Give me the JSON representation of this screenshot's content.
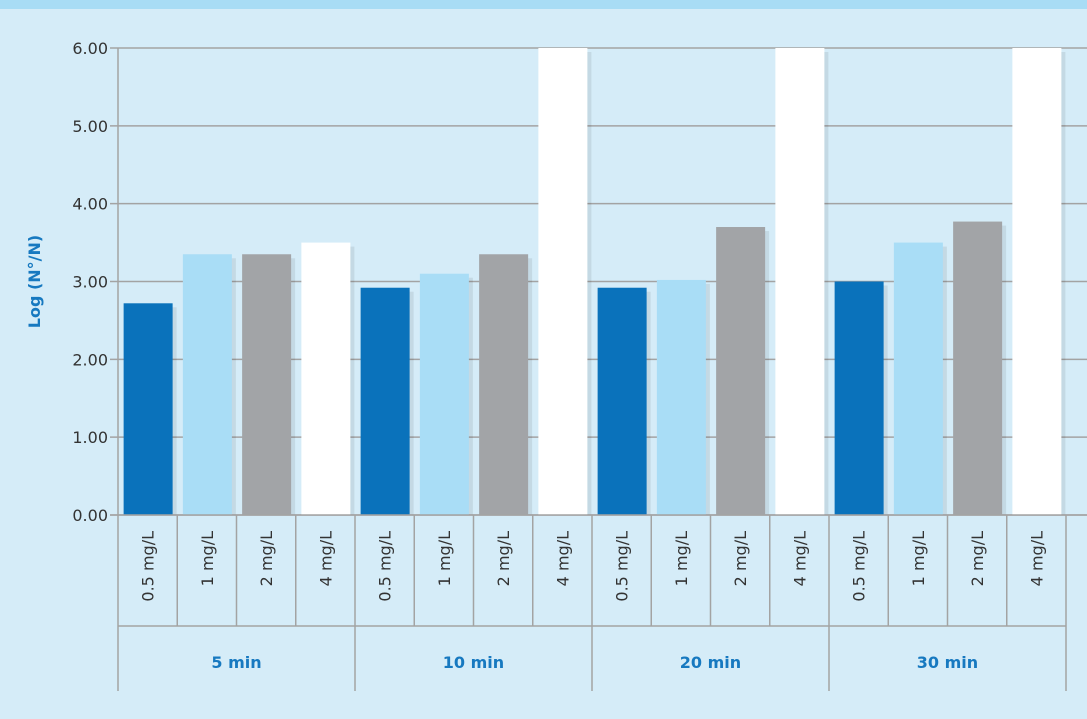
{
  "chart_data": {
    "type": "bar",
    "ylabel": "Log (N°/N)",
    "ylim": [
      0,
      6
    ],
    "yticks": [
      "0.00",
      "1.00",
      "2.00",
      "3.00",
      "4.00",
      "5.00",
      "6.00"
    ],
    "grid": true,
    "groups": [
      "5 min",
      "10 min",
      "20 min",
      "30 min"
    ],
    "categories": [
      "0.5 mg/L",
      "1 mg/L",
      "2 mg/L",
      "4 mg/L"
    ],
    "colors": [
      "#0a72bb",
      "#a9ddf6",
      "#a2a4a7",
      "#ffffff"
    ],
    "values": [
      [
        2.72,
        3.35,
        3.35,
        3.5
      ],
      [
        2.92,
        3.1,
        3.35,
        6.0
      ],
      [
        2.92,
        3.02,
        3.7,
        6.0
      ],
      [
        3.0,
        3.5,
        3.77,
        6.0
      ]
    ]
  }
}
